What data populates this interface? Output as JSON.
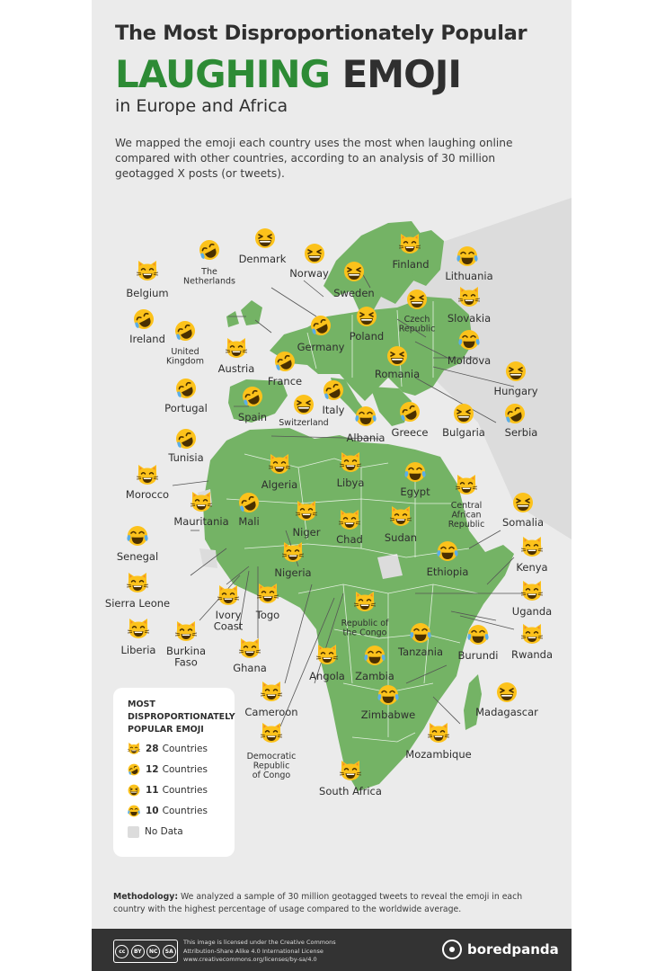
{
  "header": {
    "title_line1": "The Most Disproportionately Popular",
    "title_green": "LAUGHING",
    "title_dark": "EMOJI",
    "title_line3": "in Europe and Africa",
    "intro": "We mapped the emoji each country uses the most when laughing online compared with other countries, according to an analysis of 30 million geotagged X posts (or tweets)."
  },
  "legend": {
    "title": "MOST DISPROPORTIONATELY POPULAR EMOJI",
    "items": [
      {
        "emoji": "cat",
        "count": "28",
        "label": "Countries"
      },
      {
        "emoji": "rofl",
        "count": "12",
        "label": "Countries"
      },
      {
        "emoji": "grin",
        "count": "11",
        "label": "Countries"
      },
      {
        "emoji": "tears",
        "count": "10",
        "label": "Countries"
      }
    ],
    "no_data": "No Data"
  },
  "countries": [
    {
      "name": "Denmark",
      "emoji": "grin"
    },
    {
      "name": "Norway",
      "emoji": "grin"
    },
    {
      "name": "Sweden",
      "emoji": "grin"
    },
    {
      "name": "Finland",
      "emoji": "cat"
    },
    {
      "name": "Lithuania",
      "emoji": "tears"
    },
    {
      "name": "The Netherlands",
      "emoji": "rofl"
    },
    {
      "name": "Belgium",
      "emoji": "cat"
    },
    {
      "name": "Czech Republic",
      "emoji": "grin"
    },
    {
      "name": "Slovakia",
      "emoji": "cat"
    },
    {
      "name": "Ireland",
      "emoji": "rofl"
    },
    {
      "name": "United Kingdom",
      "emoji": "rofl"
    },
    {
      "name": "Germany",
      "emoji": "rofl"
    },
    {
      "name": "Poland",
      "emoji": "grin"
    },
    {
      "name": "Moldova",
      "emoji": "tears"
    },
    {
      "name": "Austria",
      "emoji": "cat"
    },
    {
      "name": "France",
      "emoji": "rofl"
    },
    {
      "name": "Romania",
      "emoji": "grin"
    },
    {
      "name": "Hungary",
      "emoji": "grin"
    },
    {
      "name": "Portugal",
      "emoji": "rofl"
    },
    {
      "name": "Spain",
      "emoji": "rofl"
    },
    {
      "name": "Switzerland",
      "emoji": "grin"
    },
    {
      "name": "Italy",
      "emoji": "rofl"
    },
    {
      "name": "Albania",
      "emoji": "tears"
    },
    {
      "name": "Greece",
      "emoji": "rofl"
    },
    {
      "name": "Bulgaria",
      "emoji": "grin"
    },
    {
      "name": "Serbia",
      "emoji": "rofl"
    },
    {
      "name": "Tunisia",
      "emoji": "rofl"
    },
    {
      "name": "Morocco",
      "emoji": "cat"
    },
    {
      "name": "Algeria",
      "emoji": "cat"
    },
    {
      "name": "Libya",
      "emoji": "cat"
    },
    {
      "name": "Egypt",
      "emoji": "tears"
    },
    {
      "name": "Central African Republic",
      "emoji": "cat"
    },
    {
      "name": "Mauritania",
      "emoji": "cat"
    },
    {
      "name": "Mali",
      "emoji": "rofl"
    },
    {
      "name": "Niger",
      "emoji": "cat"
    },
    {
      "name": "Chad",
      "emoji": "cat"
    },
    {
      "name": "Sudan",
      "emoji": "cat"
    },
    {
      "name": "Somalia",
      "emoji": "grin"
    },
    {
      "name": "Senegal",
      "emoji": "tears"
    },
    {
      "name": "Ethiopia",
      "emoji": "tears"
    },
    {
      "name": "Kenya",
      "emoji": "cat"
    },
    {
      "name": "Nigeria",
      "emoji": "cat"
    },
    {
      "name": "Sierra Leone",
      "emoji": "cat"
    },
    {
      "name": "Uganda",
      "emoji": "cat"
    },
    {
      "name": "Togo",
      "emoji": "cat"
    },
    {
      "name": "Ivory Coast",
      "emoji": "cat"
    },
    {
      "name": "Republic of the Congo",
      "emoji": "cat"
    },
    {
      "name": "Liberia",
      "emoji": "cat"
    },
    {
      "name": "Burkina Faso",
      "emoji": "cat"
    },
    {
      "name": "Tanzania",
      "emoji": "tears"
    },
    {
      "name": "Burundi",
      "emoji": "tears"
    },
    {
      "name": "Rwanda",
      "emoji": "cat"
    },
    {
      "name": "Ghana",
      "emoji": "cat"
    },
    {
      "name": "Angola",
      "emoji": "cat"
    },
    {
      "name": "Zambia",
      "emoji": "tears"
    },
    {
      "name": "Zimbabwe",
      "emoji": "tears"
    },
    {
      "name": "Madagascar",
      "emoji": "grin"
    },
    {
      "name": "Cameroon",
      "emoji": "cat"
    },
    {
      "name": "Mozambique",
      "emoji": "cat"
    },
    {
      "name": "Democratic Republic of Congo",
      "emoji": "cat"
    },
    {
      "name": "South Africa",
      "emoji": "cat"
    }
  ],
  "methodology": {
    "label": "Methodology:",
    "text": "We analyzed a sample of 30 million geotagged tweets to reveal the emoji in each country with the highest percentage of usage compared to the worldwide average."
  },
  "footer": {
    "license_line1": "This image is licensed under the Creative Commons",
    "license_line2": "Attribution-Share Alike 4.0 International License",
    "license_line3": "www.creativecommons.org/licenses/by-sa/4.0",
    "cc_badges": [
      "cc",
      "BY",
      "NC",
      "SA"
    ],
    "brand": "boredpanda"
  },
  "colors": {
    "land": "#74b365",
    "no_data": "#dcdcdc",
    "accent": "#2d8b35",
    "emoji": "#fcc21b",
    "background": "#ebebeb"
  }
}
